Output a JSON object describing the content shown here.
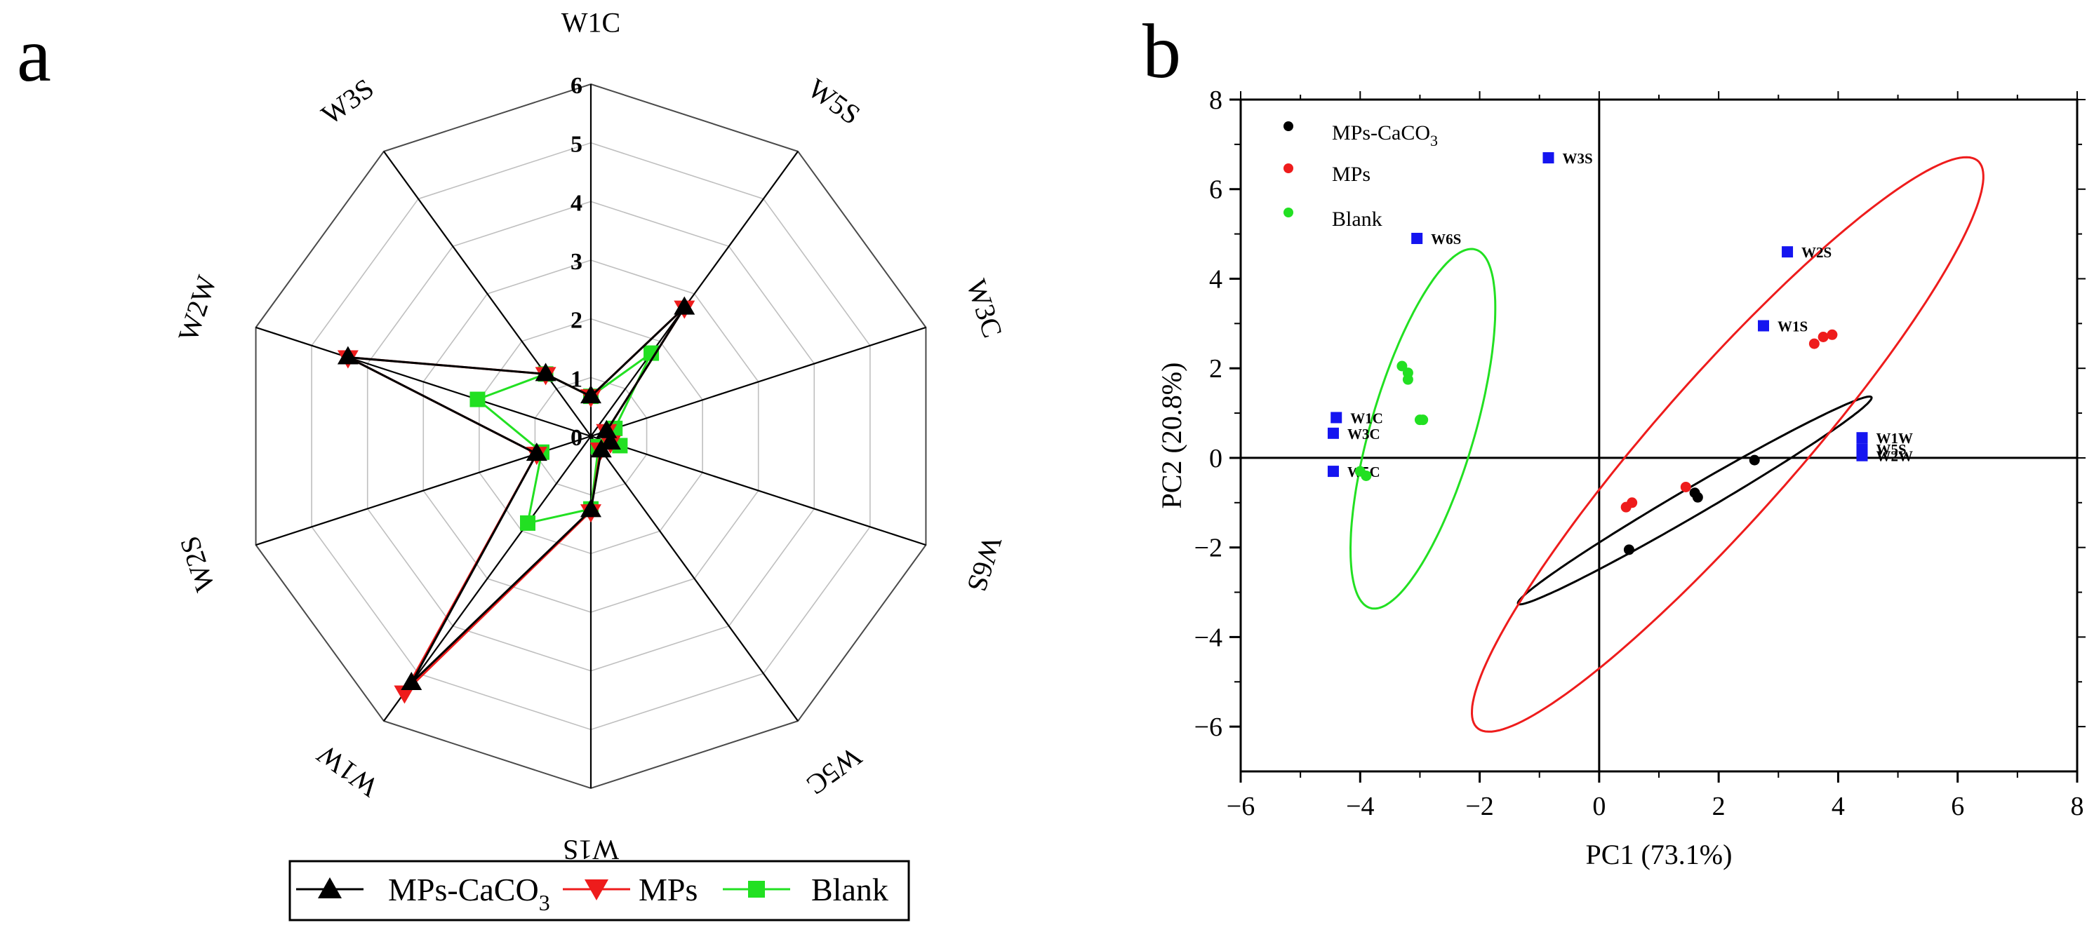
{
  "colors": {
    "mps_caco3": "#000000",
    "mps": "#ee1c1c",
    "blank": "#22e022",
    "sensor": "#1515f0",
    "grid": "#bfbfbf",
    "axis": "#000000"
  },
  "chart_data": [
    {
      "type": "radar",
      "panel_label": "a",
      "axes": [
        "W1C",
        "W5S",
        "W3C",
        "W6S",
        "W5C",
        "W1S",
        "W1W",
        "W2S",
        "W2W",
        "W3S"
      ],
      "rlim": [
        0,
        6
      ],
      "ticks": [
        "0",
        "1",
        "2",
        "3",
        "4",
        "5",
        "6"
      ],
      "series": [
        {
          "name": "MPs-CaCO",
          "subscript": "3",
          "marker": "triangle-up",
          "color_key": "mps_caco3",
          "values": [
            0.68,
            2.71,
            0.28,
            0.35,
            0.3,
            1.26,
            5.2,
            0.97,
            4.35,
            1.31
          ]
        },
        {
          "name": "MPs",
          "marker": "triangle-down",
          "color_key": "mps",
          "values": [
            0.68,
            2.71,
            0.28,
            0.35,
            0.28,
            1.28,
            5.4,
            0.97,
            4.35,
            1.31
          ]
        },
        {
          "name": "Blank",
          "marker": "square",
          "color_key": "blank",
          "values": [
            0.68,
            1.75,
            0.43,
            0.52,
            0.22,
            1.24,
            1.83,
            0.88,
            2.03,
            1.31
          ]
        }
      ],
      "legend_position": "bottom"
    },
    {
      "type": "scatter",
      "panel_label": "b",
      "xlabel": "PC1 (73.1%)",
      "ylabel": "PC2 (20.8%)",
      "xlim": [
        -6,
        8
      ],
      "ylim": [
        -7,
        8
      ],
      "xticks": [
        -6,
        -4,
        -2,
        0,
        2,
        4,
        6,
        8
      ],
      "yticks": [
        -6,
        -4,
        -2,
        0,
        2,
        4,
        6,
        8
      ],
      "xtick_labels": [
        "−6",
        "−4",
        "−2",
        "0",
        "2",
        "4",
        "6",
        "8"
      ],
      "ytick_labels": [
        "−6",
        "−4",
        "−2",
        "0",
        "2",
        "4",
        "6",
        "8"
      ],
      "legend_position": "top-left",
      "series": [
        {
          "name": "MPs-CaCO",
          "subscript": "3",
          "color_key": "mps_caco3",
          "points": [
            [
              0.5,
              -2.05
            ],
            [
              1.6,
              -0.78
            ],
            [
              1.65,
              -0.88
            ],
            [
              2.6,
              -0.05
            ]
          ]
        },
        {
          "name": "MPs",
          "color_key": "mps",
          "points": [
            [
              0.45,
              -1.1
            ],
            [
              0.55,
              -1.0
            ],
            [
              1.45,
              -0.65
            ],
            [
              3.6,
              2.55
            ],
            [
              3.75,
              2.7
            ],
            [
              3.9,
              2.75
            ]
          ]
        },
        {
          "name": "Blank",
          "color_key": "blank",
          "points": [
            [
              -4.0,
              -0.3
            ],
            [
              -3.9,
              -0.4
            ],
            [
              -3.3,
              2.05
            ],
            [
              -3.2,
              1.9
            ],
            [
              -3.2,
              1.75
            ],
            [
              -3.0,
              0.85
            ],
            [
              -2.95,
              0.85
            ]
          ]
        }
      ],
      "sensors": [
        {
          "label": "W3S",
          "x": -0.85,
          "y": 6.7
        },
        {
          "label": "W6S",
          "x": -3.05,
          "y": 4.9
        },
        {
          "label": "W2S",
          "x": 3.15,
          "y": 4.6
        },
        {
          "label": "W1S",
          "x": 2.75,
          "y": 2.95
        },
        {
          "label": "W1C",
          "x": -4.4,
          "y": 0.9
        },
        {
          "label": "W3C",
          "x": -4.45,
          "y": 0.55
        },
        {
          "label": "W5C",
          "x": -4.45,
          "y": -0.3
        },
        {
          "label": "W1W",
          "x": 4.4,
          "y": 0.45
        },
        {
          "label": "W5S",
          "x": 4.4,
          "y": 0.2
        },
        {
          "label": "W2W",
          "x": 4.4,
          "y": 0.05
        }
      ],
      "ellipses": [
        {
          "color_key": "blank",
          "center": [
            -2.95,
            0.65
          ],
          "semi_major": 4.1,
          "semi_minor": 0.88,
          "angle_deg": 78
        },
        {
          "color_key": "mps_caco3",
          "center": [
            1.6,
            -0.95
          ],
          "semi_major": 3.75,
          "semi_minor": 0.28,
          "angle_deg": 38
        },
        {
          "color_key": "mps",
          "center": [
            2.15,
            0.3
          ],
          "semi_major": 7.6,
          "semi_minor": 1.3,
          "angle_deg": 57
        }
      ]
    }
  ]
}
